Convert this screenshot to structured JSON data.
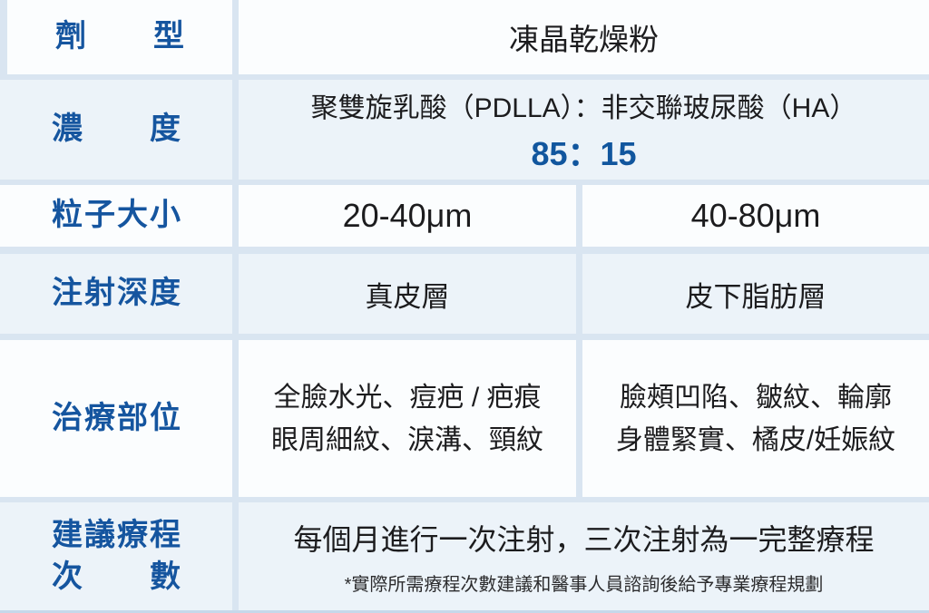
{
  "colors": {
    "accent_blue": "#15559F",
    "ratio_blue": "#11569E",
    "text_dark": "#1C1C1E",
    "cell_white": "#FBFDFE",
    "cell_blue": "#ECF3F9",
    "gap_blue": "#D9E5F1",
    "bottom_edge": "#C6D8EA"
  },
  "table": {
    "dosage_form": {
      "label": "劑型",
      "value": "凍晶乾燥粉"
    },
    "concentration": {
      "label": "濃度",
      "composition": "聚雙旋乳酸（PDLLA）：非交聯玻尿酸（HA）",
      "ratio": "85：15"
    },
    "particle_size": {
      "label": "粒子大小",
      "dermal": "20-40μm",
      "subcutaneous": "40-80μm"
    },
    "injection_depth": {
      "label": "注射深度",
      "dermal": "真皮層",
      "subcutaneous": "皮下脂肪層"
    },
    "treatment_area": {
      "label": "治療部位",
      "dermal_line1": "全臉水光、痘疤 / 疤痕",
      "dermal_line2": "眼周細紋、淚溝、頸紋",
      "subcutaneous_line1": "臉頰凹陷、皺紋、輪廓",
      "subcutaneous_line2": "身體緊實、橘皮/妊娠紋"
    },
    "recommended_sessions": {
      "label_line1": "建議療程",
      "label_line2": "次數",
      "value": "每個月進行一次注射，三次注射為一完整療程",
      "footnote": "*實際所需療程次數建議和醫事人員諮詢後給予專業療程規劃"
    }
  }
}
